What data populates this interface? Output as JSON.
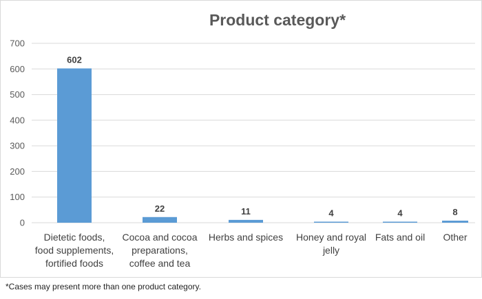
{
  "chart_data": {
    "type": "bar",
    "title": "Product category*",
    "categories": [
      [
        "Dietetic foods,",
        "food supplements,",
        "fortified foods"
      ],
      [
        "Cocoa and cocoa",
        "preparations,",
        "coffee and tea"
      ],
      [
        "Herbs and spices"
      ],
      [
        "Honey and royal",
        "jelly"
      ],
      [
        "Fats and oil"
      ],
      [
        "Other"
      ]
    ],
    "values": [
      602,
      22,
      11,
      4,
      4,
      8
    ],
    "ylim": [
      0,
      700
    ],
    "yticks": [
      0,
      100,
      200,
      300,
      400,
      500,
      600,
      700
    ],
    "grid": true,
    "data_labels": true,
    "bar_color": "#5b9bd5",
    "grid_color": "#d9d9d9",
    "xlabel": "",
    "ylabel": ""
  },
  "footnote": "*Cases may present more than one product category."
}
